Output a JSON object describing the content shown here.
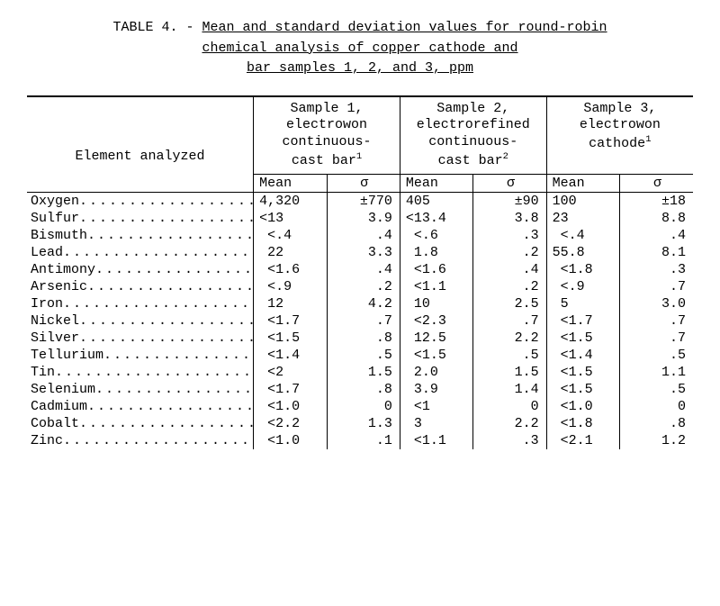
{
  "title": {
    "prefix": "TABLE 4. - ",
    "line1": "Mean and standard deviation values for round-robin",
    "line2": "chemical analysis of copper cathode and",
    "line3": "bar samples 1, 2, and 3, ppm"
  },
  "headers": {
    "element": "Element analyzed",
    "mean": "Mean",
    "sigma": "σ",
    "s1a": "Sample 1,",
    "s1b": "electrowon",
    "s1c": "continuous-",
    "s1d": "cast bar",
    "s1sup": "1",
    "s2a": "Sample 2,",
    "s2b": "electrorefined",
    "s2c": "continuous-",
    "s2d": "cast bar",
    "s2sup": "2",
    "s3a": "Sample 3,",
    "s3b": "electrowon",
    "s3c": "cathode",
    "s3sup": "1"
  },
  "rows": [
    {
      "e": "Oxygen",
      "m1": "4,320",
      "s1": "±770",
      "m2": "405",
      "s2": "±90",
      "m3": "100",
      "s3": "±18"
    },
    {
      "e": "Sulfur",
      "m1": "<13",
      "s1": "3.9",
      "m2": "<13.4",
      "s2": "3.8",
      "m3": "23",
      "s3": "8.8"
    },
    {
      "e": "Bismuth",
      "m1": " <.4",
      "s1": ".4",
      "m2": " <.6",
      "s2": ".3",
      "m3": " <.4",
      "s3": ".4"
    },
    {
      "e": "Lead",
      "m1": " 22",
      "s1": "3.3",
      "m2": " 1.8",
      "s2": ".2",
      "m3": "55.8",
      "s3": "8.1"
    },
    {
      "e": "Antimony",
      "m1": " <1.6",
      "s1": ".4",
      "m2": " <1.6",
      "s2": ".4",
      "m3": " <1.8",
      "s3": ".3"
    },
    {
      "e": "Arsenic",
      "m1": " <.9",
      "s1": ".2",
      "m2": " <1.1",
      "s2": ".2",
      "m3": " <.9",
      "s3": ".7"
    },
    {
      "e": "Iron",
      "m1": " 12",
      "s1": "4.2",
      "m2": " 10",
      "s2": "2.5",
      "m3": " 5",
      "s3": "3.0"
    },
    {
      "e": "Nickel",
      "m1": " <1.7",
      "s1": ".7",
      "m2": " <2.3",
      "s2": ".7",
      "m3": " <1.7",
      "s3": ".7"
    },
    {
      "e": "Silver",
      "m1": " <1.5",
      "s1": ".8",
      "m2": " 12.5",
      "s2": "2.2",
      "m3": " <1.5",
      "s3": ".7"
    },
    {
      "e": "Tellurium",
      "m1": " <1.4",
      "s1": ".5",
      "m2": " <1.5",
      "s2": ".5",
      "m3": " <1.4",
      "s3": ".5"
    },
    {
      "e": "Tin",
      "m1": " <2",
      "s1": "1.5",
      "m2": " 2.0",
      "s2": "1.5",
      "m3": " <1.5",
      "s3": "1.1"
    },
    {
      "e": "Selenium",
      "m1": " <1.7",
      "s1": ".8",
      "m2": " 3.9",
      "s2": "1.4",
      "m3": " <1.5",
      "s3": ".5"
    },
    {
      "e": "Cadmium",
      "m1": " <1.0",
      "s1": "0",
      "m2": " <1",
      "s2": "0",
      "m3": " <1.0",
      "s3": "0"
    },
    {
      "e": "Cobalt",
      "m1": " <2.2",
      "s1": "1.3",
      "m2": " 3",
      "s2": "2.2",
      "m3": " <1.8",
      "s3": ".8"
    },
    {
      "e": "Zinc",
      "m1": " <1.0",
      "s1": ".1",
      "m2": " <1.1",
      "s2": ".3",
      "m3": " <2.1",
      "s3": "1.2"
    }
  ]
}
